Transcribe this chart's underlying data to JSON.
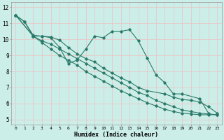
{
  "xlabel": "Humidex (Indice chaleur)",
  "bg_color": "#cceee8",
  "grid_color": "#e8c8c8",
  "line_color": "#2a7a6a",
  "xlim": [
    -0.5,
    23.5
  ],
  "ylim": [
    4.7,
    12.3
  ],
  "xticks": [
    0,
    1,
    2,
    3,
    4,
    5,
    6,
    7,
    8,
    9,
    10,
    11,
    12,
    13,
    14,
    15,
    16,
    17,
    18,
    19,
    20,
    21,
    22,
    23
  ],
  "yticks": [
    5,
    6,
    7,
    8,
    9,
    10,
    11,
    12
  ],
  "line1_x": [
    0,
    1,
    2,
    3,
    4,
    5,
    6,
    7,
    8,
    9,
    10,
    11,
    12,
    13,
    14,
    15,
    16,
    17,
    18,
    19,
    21,
    22
  ],
  "line1_y": [
    11.5,
    11.1,
    10.2,
    10.2,
    10.1,
    9.5,
    8.5,
    8.7,
    9.4,
    10.2,
    10.1,
    10.5,
    10.5,
    10.6,
    9.9,
    8.85,
    7.8,
    7.3,
    6.6,
    6.6,
    6.3,
    5.4
  ],
  "line2_x": [
    0,
    1,
    2,
    3,
    4,
    5,
    6,
    7,
    8,
    9,
    10,
    11,
    12,
    13,
    14,
    15,
    17,
    18,
    19,
    20,
    21,
    22,
    23
  ],
  "line2_y": [
    11.5,
    11.1,
    10.25,
    10.2,
    10.15,
    9.95,
    9.5,
    9.1,
    8.8,
    8.6,
    8.2,
    7.9,
    7.6,
    7.35,
    7.0,
    6.8,
    6.6,
    6.4,
    6.25,
    6.2,
    6.1,
    5.8,
    5.4
  ],
  "line3_x": [
    0,
    2,
    3,
    4,
    5,
    6,
    7,
    8,
    9,
    10,
    11,
    12,
    13,
    14,
    15,
    16,
    17,
    18,
    19,
    20,
    21,
    22,
    23
  ],
  "line3_y": [
    11.5,
    10.2,
    9.9,
    9.7,
    9.4,
    9.1,
    8.8,
    8.5,
    8.2,
    7.9,
    7.6,
    7.3,
    7.0,
    6.7,
    6.5,
    6.2,
    6.0,
    5.8,
    5.6,
    5.5,
    5.4,
    5.35,
    5.3
  ],
  "line4_x": [
    0,
    2,
    3,
    4,
    5,
    6,
    7,
    8,
    9,
    10,
    11,
    12,
    13,
    14,
    15,
    16,
    17,
    18,
    19,
    20,
    21,
    22,
    23
  ],
  "line4_y": [
    11.5,
    10.2,
    9.8,
    9.4,
    9.0,
    8.7,
    8.4,
    8.0,
    7.7,
    7.4,
    7.1,
    6.8,
    6.55,
    6.3,
    6.05,
    5.85,
    5.65,
    5.5,
    5.4,
    5.35,
    5.3,
    5.3,
    5.3
  ]
}
